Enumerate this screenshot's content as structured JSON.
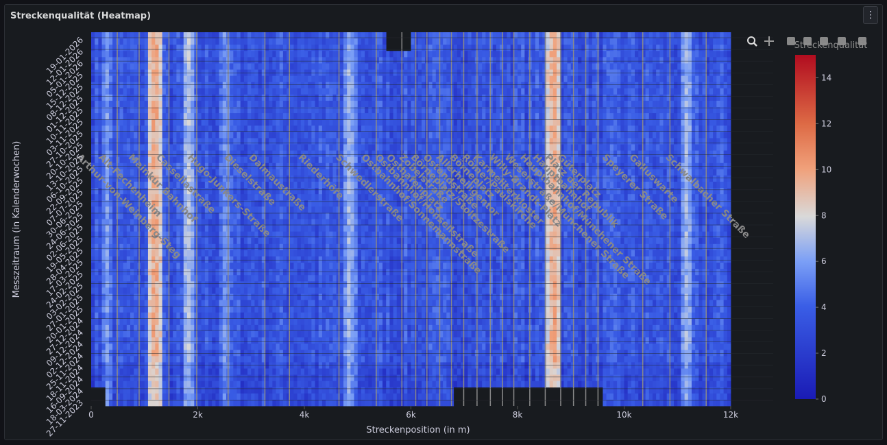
{
  "panel": {
    "title": "Streckenqualität (Heatmap)",
    "menu_icon": "kebab-menu-icon"
  },
  "toolbar": {
    "icons": [
      "zoom-icon",
      "pan-icon",
      "zoom-in-icon",
      "zoom-out-icon",
      "autoscale-icon",
      "reset-icon",
      "camera-icon"
    ]
  },
  "colors": {
    "low": "#1a1bb5",
    "mid": "#d9d9d9",
    "high": "#b10c1f",
    "station_line": "#8a8a8a",
    "label": "#8a8a8a"
  },
  "chart_data": {
    "type": "heatmap",
    "title": "",
    "xlabel": "Streckenposition (in m)",
    "ylabel": "Messzeitraum (in Kalenderwochen)",
    "colorbar_title": "Streckenqualität",
    "xlim": [
      0,
      12000
    ],
    "zlim": [
      0,
      15
    ],
    "x_ticks": [
      0,
      2000,
      4000,
      6000,
      8000,
      10000,
      12000
    ],
    "x_tick_labels": [
      "0",
      "2k",
      "4k",
      "6k",
      "8k",
      "10k",
      "12k"
    ],
    "colorbar_ticks": [
      0,
      2,
      4,
      6,
      8,
      10,
      12,
      14
    ],
    "y_tick_labels": [
      "27-11-2023",
      "18-03-2024",
      "16-09-2024",
      "18-11-2024",
      "25-11-2024",
      "02-12-2024",
      "09-12-2024",
      "27-12-2024",
      "20-01-2025",
      "27-01-2025",
      "03-02-2025",
      "24-02-2025",
      "17-03-2025",
      "28-04-2025",
      "19-05-2025",
      "02-06-2025",
      "24-06-2025",
      "30-06-2025",
      "07-07-2025",
      "22-09-2025",
      "06-10-2025",
      "13-10-2025",
      "20-10-2025",
      "27-10-2025",
      "03-11-2025",
      "10-11-2025",
      "01-12-2025",
      "08-12-2025",
      "15-12-2025",
      "05-01-2026",
      "12-01-2026",
      "19-01-2026"
    ],
    "stations": [
      {
        "name": "Arthur-von-Weinberg-Steg",
        "x": 490
      },
      {
        "name": "Alt-Fechenheim",
        "x": 900
      },
      {
        "name": "Mainkur Bahnhof",
        "x": 1460
      },
      {
        "name": "Cassellastraße",
        "x": 1980
      },
      {
        "name": "Hugo-Junkers-Straße",
        "x": 2570
      },
      {
        "name": "Dieselstraße",
        "x": 3260
      },
      {
        "name": "Dalmaustraße",
        "x": 3720
      },
      {
        "name": "Riederhöfe",
        "x": 4650
      },
      {
        "name": "Schwedlerstraße",
        "x": 5350
      },
      {
        "name": "Ostbahnhof/Sonnemannstraße",
        "x": 5830
      },
      {
        "name": "Ostbahnhof/Honsellstraße",
        "x": 6090
      },
      {
        "name": "Osthafenplatz",
        "x": 6300
      },
      {
        "name": "Börneplatz/Stoltzestraße",
        "x": 6760
      },
      {
        "name": "Zobelstraße",
        "x": 6540
      },
      {
        "name": "Ostendstraße",
        "x": 6990
      },
      {
        "name": "Allerheiligentor",
        "x": 7240
      },
      {
        "name": "Börneplatz",
        "x": 7490
      },
      {
        "name": "Römer/Paulskirche",
        "x": 7720
      },
      {
        "name": "Karmeliterkloster",
        "x": 7930
      },
      {
        "name": "Willy-Brandt-Platz",
        "x": 8230
      },
      {
        "name": "Weserstraße/Münchener Straße",
        "x": 8520
      },
      {
        "name": "Hauptbahnhof/Münchener Straße",
        "x": 8810
      },
      {
        "name": "Hauptbahnhof",
        "x": 9050
      },
      {
        "name": "Platz der Republik",
        "x": 9280
      },
      {
        "name": "Güterplatz",
        "x": 9510
      },
      {
        "name": "Speyerer Straße",
        "x": 10350
      },
      {
        "name": "Galluswarte",
        "x": 10860
      },
      {
        "name": "Schwalbacher Straße",
        "x": 11540
      }
    ],
    "high_bands": [
      {
        "x": 1200,
        "level": 10
      },
      {
        "x": 1820,
        "level": 7.5
      },
      {
        "x": 4850,
        "level": 7
      },
      {
        "x": 8680,
        "level": 10
      },
      {
        "x": 11180,
        "level": 7
      },
      {
        "x": 300,
        "level": 6
      },
      {
        "x": 2520,
        "level": 6
      }
    ],
    "grid": true
  }
}
